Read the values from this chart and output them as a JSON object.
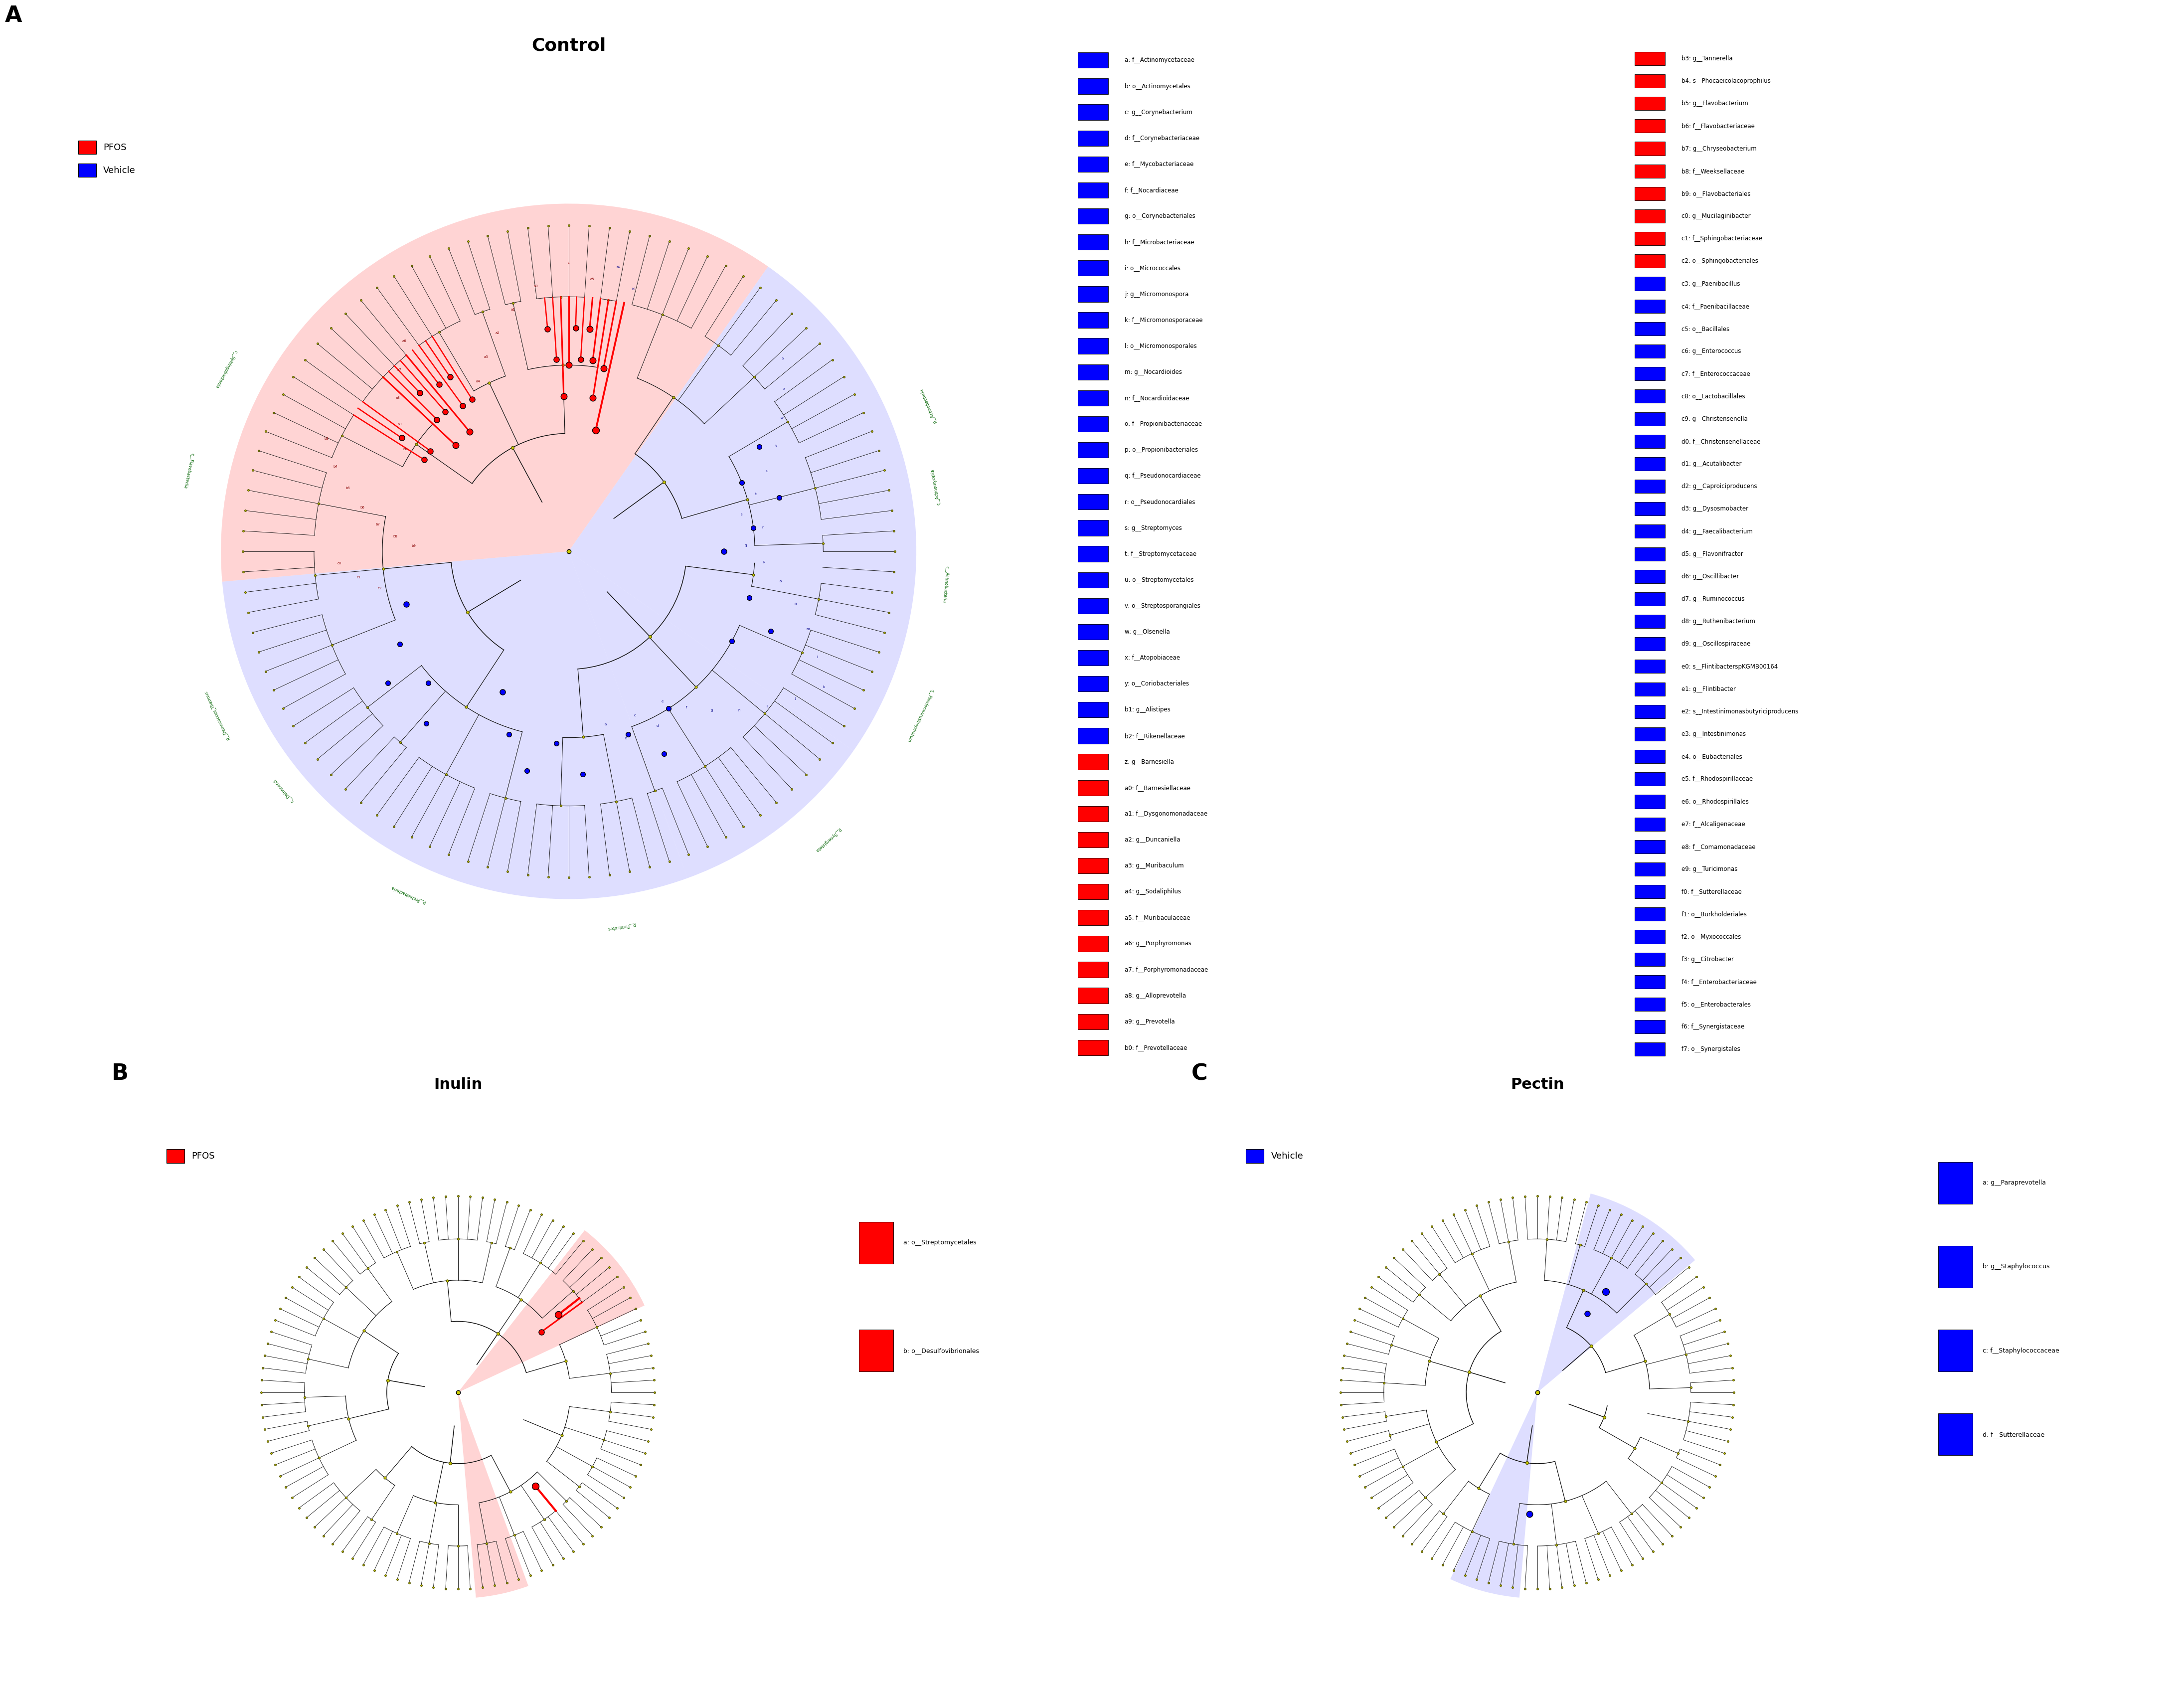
{
  "panel_A": {
    "title": "Control",
    "title_fontsize": 26,
    "pfos_labels": [
      "z: g__Barnesiella",
      "a0: f__Barnesiellaceae",
      "a1: f__Dysgonomonadaceae",
      "a2: g__Duncaniella",
      "a3: g__Muribaculum",
      "a4: g__Sodaliphilus",
      "a5: f__Muribaculaceae",
      "a6: g__Porphyromonas",
      "a7: f__Porphyromonadaceae",
      "a8: g__Alloprevotella",
      "a9: g__Prevotella",
      "b0: f__Prevotellaceae",
      "b3: g__Tannerella",
      "b4: s__Phocaeicolacoprophilus",
      "b5: g__Flavobacterium",
      "b6: f__Flavobacteriaceae",
      "b7: g__Chryseobacterium",
      "b8: f__Weeksellaceae",
      "b9: o__Flavobacteriales",
      "c0: g__Mucilaginibacter",
      "c1: f__Sphingobacteriaceae",
      "c2: o__Sphingobacteriales"
    ],
    "vehicle_labels": [
      "a: f__Actinomycetaceae",
      "b: o__Actinomycetales",
      "c: g__Corynebacterium",
      "d: f__Corynebacteriaceae",
      "e: f__Mycobacteriaceae",
      "f: f__Nocardiaceae",
      "g: o__Corynebacteriales",
      "h: f__Microbacteriaceae",
      "i: o__Micrococcales",
      "j: g__Micromonospora",
      "k: f__Micromonosporaceae",
      "l: o__Micromonosporales",
      "m: g__Nocardioides",
      "n: f__Nocardioidaceae",
      "o: f__Propionibacteriaceae",
      "p: o__Propionibacteriales",
      "q: f__Pseudonocardiaceae",
      "r: o__Pseudonocardiales",
      "s: g__Streptomyces",
      "t: f__Streptomycetaceae",
      "u: o__Streptomycetales",
      "v: o__Streptosporangiales",
      "w: g__Olsenella",
      "x: f__Atopobiaceae",
      "y: o__Coriobacteriales",
      "b1: g__Alistipes",
      "b2: f__Rikenellaceae",
      "c3: g__Paenibacillus",
      "c4: f__Paenibacillaceae",
      "c5: o__Bacillales",
      "c6: g__Enterococcus",
      "c7: f__Enterococcaceae",
      "c8: o__Lactobacillales",
      "c9: g__Christensenella",
      "d0: f__Christensenellaceae",
      "d1: g__Acutalibacter",
      "d2: g__Caproiciproducens",
      "d3: g__Dysosmobacter",
      "d4: g__Faecalibacterium",
      "d5: g__Flavonifractor",
      "d6: g__Oscillibacter",
      "d7: g__Ruminococcus",
      "d8: g__Ruthenibacterium",
      "d9: g__Oscillospiraceae",
      "e0: s__FlintibacterspKGMB00164",
      "e1: g__Flintibacter",
      "e2: s__Intestinimonasbutyriciproducens",
      "e3: g__Intestinimonas",
      "e4: o__Eubacteriales",
      "e5: f__Rhodospirillaceae",
      "e6: o__Rhodospirillales",
      "e7: f__Alcaligenaceae",
      "e8: f__Comamonadaceae",
      "e9: g__Turicimonas",
      "f0: f__Sutterellaceae",
      "f1: o__Burkholderiales",
      "f2: o__Myxococcales",
      "f3: g__Citrobacter",
      "f4: f__Enterobacteriaceae",
      "f5: o__Enterobacterales",
      "f6: f__Synergistaceae",
      "f7: o__Synergistales"
    ],
    "pfos_color": "#FF0000",
    "vehicle_color": "#0000FF",
    "pfos_bg": "#FFAAAA",
    "vehicle_bg": "#AAAAFF"
  },
  "panel_B": {
    "title": "Inulin",
    "pfos_labels": [
      "a: o__Streptomycetales",
      "b: o__Desulfovibrionales"
    ],
    "pfos_color": "#FF0000",
    "pfos_bg": "#FFAAAA"
  },
  "panel_C": {
    "title": "Pectin",
    "vehicle_labels": [
      "a: g__Paraprevotella",
      "b: g__Staphylococcus",
      "c: f__Staphylococcaceae",
      "d: f__Sutterellaceae"
    ],
    "vehicle_color": "#0000FF",
    "vehicle_bg": "#AAAAFF"
  },
  "bg_color": "#FFFFFF",
  "pfos_node_color": "#FF0000",
  "vehicle_node_color": "#0000FF",
  "yellow_node": "#CCCC00"
}
